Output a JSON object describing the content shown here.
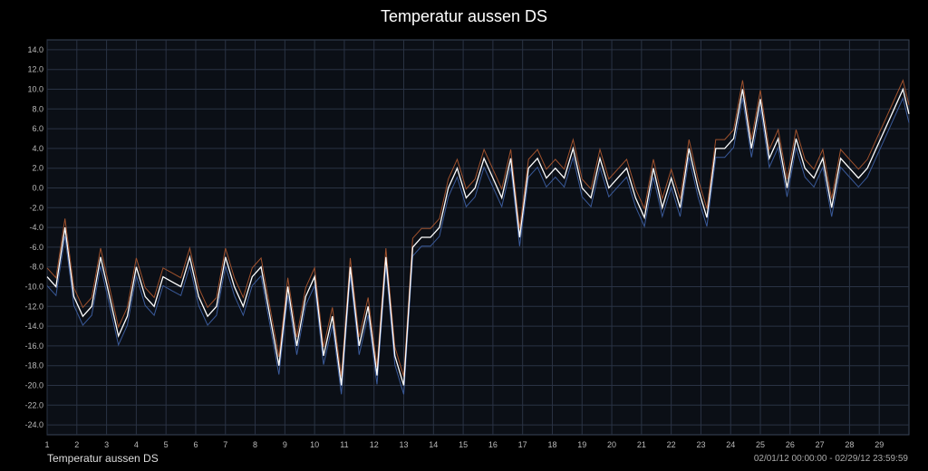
{
  "chart_data": {
    "type": "line",
    "title": "Temperatur aussen DS",
    "legend": "Temperatur aussen DS",
    "date_range": "02/01/12 00:00:00 - 02/29/12 23:59:59",
    "ylim": [
      -25,
      15
    ],
    "xlim": [
      1,
      30
    ],
    "y_ticks": [
      "14.0",
      "12.0",
      "10.0",
      "8.0",
      "6.0",
      "4.0",
      "2.0",
      "0.0",
      "-2.0",
      "-4.0",
      "-6.0",
      "-8.0",
      "-10.0",
      "-12.0",
      "-14.0",
      "-16.0",
      "-18.0",
      "-20.0",
      "-22.0",
      "-24.0"
    ],
    "x_ticks": [
      "1",
      "2",
      "3",
      "4",
      "5",
      "6",
      "7",
      "8",
      "9",
      "10",
      "11",
      "12",
      "13",
      "14",
      "15",
      "16",
      "17",
      "18",
      "19",
      "20",
      "21",
      "22",
      "23",
      "24",
      "25",
      "26",
      "27",
      "28",
      "29"
    ],
    "grid": true,
    "colors": {
      "background": "#0b0f16",
      "grid": "#2a3344",
      "main": "#ffffff",
      "max": "#a0522d",
      "min": "#3a5a9a",
      "axis": "#bbbbbb"
    },
    "series": [
      {
        "values_x": [
          1,
          1.3,
          1.6,
          1.9,
          2.2,
          2.5,
          2.8,
          3.1,
          3.4,
          3.7,
          4.0,
          4.3,
          4.6,
          4.9,
          5.2,
          5.5,
          5.8,
          6.1,
          6.4,
          6.7,
          7.0,
          7.3,
          7.6,
          7.9,
          8.2,
          8.5,
          8.8,
          9.1,
          9.4,
          9.7,
          10.0,
          10.3,
          10.6,
          10.9,
          11.2,
          11.5,
          11.8,
          12.1,
          12.4,
          12.7,
          13.0,
          13.3,
          13.6,
          13.9,
          14.2,
          14.5,
          14.8,
          15.1,
          15.4,
          15.7,
          16.0,
          16.3,
          16.6,
          16.9,
          17.2,
          17.5,
          17.8,
          18.1,
          18.4,
          18.7,
          19.0,
          19.3,
          19.6,
          19.9,
          20.2,
          20.5,
          20.8,
          21.1,
          21.4,
          21.7,
          22.0,
          22.3,
          22.6,
          22.9,
          23.2,
          23.5,
          23.8,
          24.1,
          24.4,
          24.7,
          25.0,
          25.3,
          25.6,
          25.9,
          26.2,
          26.5,
          26.8,
          27.1,
          27.4,
          27.7,
          28.0,
          28.3,
          28.6,
          28.9,
          29.2,
          29.5,
          29.8,
          30.0
        ],
        "values_y": [
          -9,
          -10,
          -4,
          -11,
          -13,
          -12,
          -7,
          -11,
          -15,
          -13,
          -8,
          -11,
          -12,
          -9,
          -9.5,
          -10,
          -7,
          -11,
          -13,
          -12,
          -7,
          -10,
          -12,
          -9,
          -8,
          -13,
          -18,
          -10,
          -16,
          -11,
          -9,
          -17,
          -13,
          -20,
          -8,
          -16,
          -12,
          -19,
          -7,
          -17,
          -20,
          -6,
          -5,
          -5,
          -4,
          0,
          2,
          -1,
          0,
          3,
          1,
          -1,
          3,
          -5,
          2,
          3,
          1,
          2,
          1,
          4,
          0,
          -1,
          3,
          0,
          1,
          2,
          -1,
          -3,
          2,
          -2,
          1,
          -2,
          4,
          0,
          -3,
          4,
          4,
          5,
          10,
          4,
          9,
          3,
          5,
          0,
          5,
          2,
          1,
          3,
          -2,
          3,
          2,
          1,
          2,
          4,
          6,
          8,
          10,
          7.5
        ],
        "name": "main"
      }
    ]
  }
}
